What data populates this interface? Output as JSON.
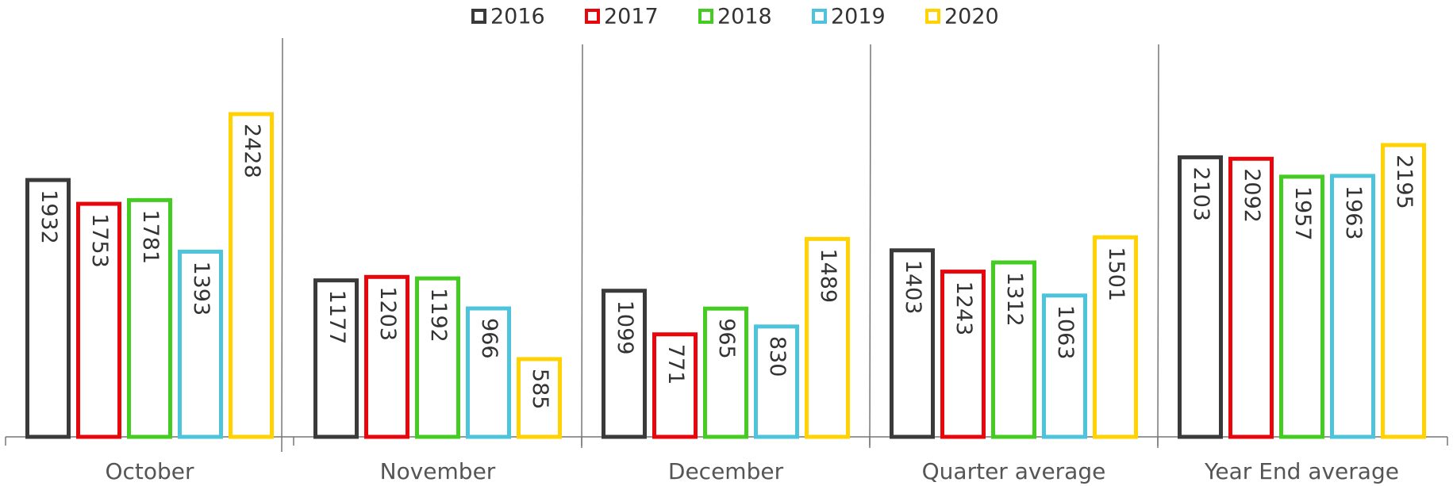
{
  "chart_data": {
    "type": "bar",
    "categories": [
      "October",
      "November",
      "December",
      "Quarter average",
      "Year End average"
    ],
    "series": [
      {
        "name": "2016",
        "color": "#3a3a3a",
        "values": [
          1932,
          1177,
          1099,
          1403,
          2103
        ]
      },
      {
        "name": "2017",
        "color": "#e8060d",
        "values": [
          1753,
          1203,
          771,
          1243,
          2092
        ]
      },
      {
        "name": "2018",
        "color": "#44cc22",
        "values": [
          1781,
          1192,
          965,
          1312,
          1957
        ]
      },
      {
        "name": "2019",
        "color": "#4dc3dc",
        "values": [
          1393,
          966,
          830,
          1063,
          1963
        ]
      },
      {
        "name": "2020",
        "color": "#ffd200",
        "values": [
          2428,
          585,
          1489,
          1501,
          2195
        ]
      }
    ],
    "ylim": [
      0,
      3000
    ]
  }
}
